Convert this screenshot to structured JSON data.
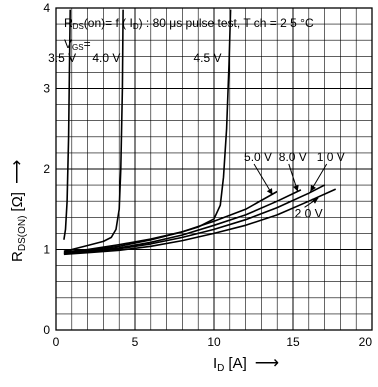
{
  "chart_data": {
    "type": "line",
    "title": "RDS(on) = f ( ID ) : 80 μs pulse test,  Tch = 2 5 °C",
    "title_parts": {
      "r": "R",
      "r_sub": "DS",
      "r_rest": "(on)= f ( I",
      "id_sub": "D",
      "rest": ") : 80 μs pulse test,  T ch = 2 5 °C"
    },
    "vgs_label": "VGS=",
    "vgs_parts": {
      "v": "V",
      "sub": "GS",
      "eq": "="
    },
    "xlabel": "ID [A]",
    "xlabel_parts": {
      "i": "I",
      "sub": "D",
      "unit": "[A]",
      "arrow": "⟶"
    },
    "ylabel": "RDS(ON) [Ω]",
    "ylabel_parts": {
      "r": "R",
      "sub": "DS(ON)",
      "unit": "[Ω]",
      "arrow": "⟶"
    },
    "xlim": [
      0,
      20
    ],
    "ylim": [
      0,
      4
    ],
    "x_ticks": [
      "0",
      "5",
      "10",
      "15",
      "20"
    ],
    "x_tick_values": [
      0,
      5,
      10,
      15,
      20
    ],
    "y_ticks": [
      "0",
      "1",
      "2",
      "3",
      "4"
    ],
    "y_tick_values": [
      0,
      1,
      2,
      3,
      4
    ],
    "grid": true,
    "minor_grid_x": 1,
    "minor_grid_y": 0.2,
    "series": [
      {
        "name": "3.5 V",
        "x": [
          0.5,
          0.6,
          0.7,
          0.8,
          0.85,
          0.9
        ],
        "y": [
          1.12,
          1.25,
          1.6,
          2.4,
          3.2,
          3.98
        ]
      },
      {
        "name": "4.0 V",
        "x": [
          0.5,
          1,
          2,
          3,
          3.5,
          3.8,
          4.0,
          4.1,
          4.2,
          4.25
        ],
        "y": [
          0.98,
          1.0,
          1.05,
          1.1,
          1.15,
          1.25,
          1.5,
          2.0,
          3.0,
          3.98
        ]
      },
      {
        "name": "4.5 V",
        "x": [
          0.5,
          2,
          4,
          6,
          8,
          9,
          10,
          10.4,
          10.6,
          10.8,
          10.95,
          11.05
        ],
        "y": [
          0.97,
          1.0,
          1.06,
          1.13,
          1.22,
          1.28,
          1.38,
          1.55,
          1.9,
          2.5,
          3.3,
          3.98
        ]
      },
      {
        "name": "5.0 V",
        "x": [
          0.5,
          2,
          4,
          6,
          8,
          10,
          12,
          14
        ],
        "y": [
          0.96,
          0.99,
          1.04,
          1.12,
          1.22,
          1.35,
          1.5,
          1.72
        ]
      },
      {
        "name": "8.0 V",
        "x": [
          0.5,
          2,
          4,
          6,
          8,
          10,
          12,
          14,
          15.5
        ],
        "y": [
          0.95,
          0.98,
          1.02,
          1.09,
          1.18,
          1.3,
          1.43,
          1.6,
          1.74
        ]
      },
      {
        "name": "1 0 V",
        "x": [
          0.5,
          2,
          4,
          6,
          8,
          10,
          12,
          14,
          16,
          17
        ],
        "y": [
          0.95,
          0.97,
          1.01,
          1.07,
          1.15,
          1.25,
          1.37,
          1.52,
          1.7,
          1.8
        ]
      },
      {
        "name": "2 0 V",
        "x": [
          0.5,
          2,
          4,
          6,
          8,
          10,
          12,
          14,
          16,
          17.7
        ],
        "y": [
          0.94,
          0.96,
          0.99,
          1.04,
          1.11,
          1.2,
          1.3,
          1.43,
          1.6,
          1.75
        ]
      }
    ],
    "annotations": [
      {
        "text": "3.5 V",
        "x": -0.5,
        "y": 3.33
      },
      {
        "text": "4.0 V",
        "x": 2.3,
        "y": 3.33
      },
      {
        "text": "4.5 V",
        "x": 8.7,
        "y": 3.33
      },
      {
        "text": "5.0 V",
        "x": 11.9,
        "y": 2.1,
        "arrow_to": [
          13.7,
          1.68
        ]
      },
      {
        "text": "8.0 V",
        "x": 14.1,
        "y": 2.1,
        "arrow_to": [
          15.3,
          1.72
        ]
      },
      {
        "text": "1 0 V",
        "x": 16.5,
        "y": 2.1,
        "arrow_to": [
          16.1,
          1.72
        ]
      },
      {
        "text": "2 0 V",
        "x": 15.1,
        "y": 1.4,
        "arrow_to": [
          16.6,
          1.64
        ]
      }
    ]
  }
}
